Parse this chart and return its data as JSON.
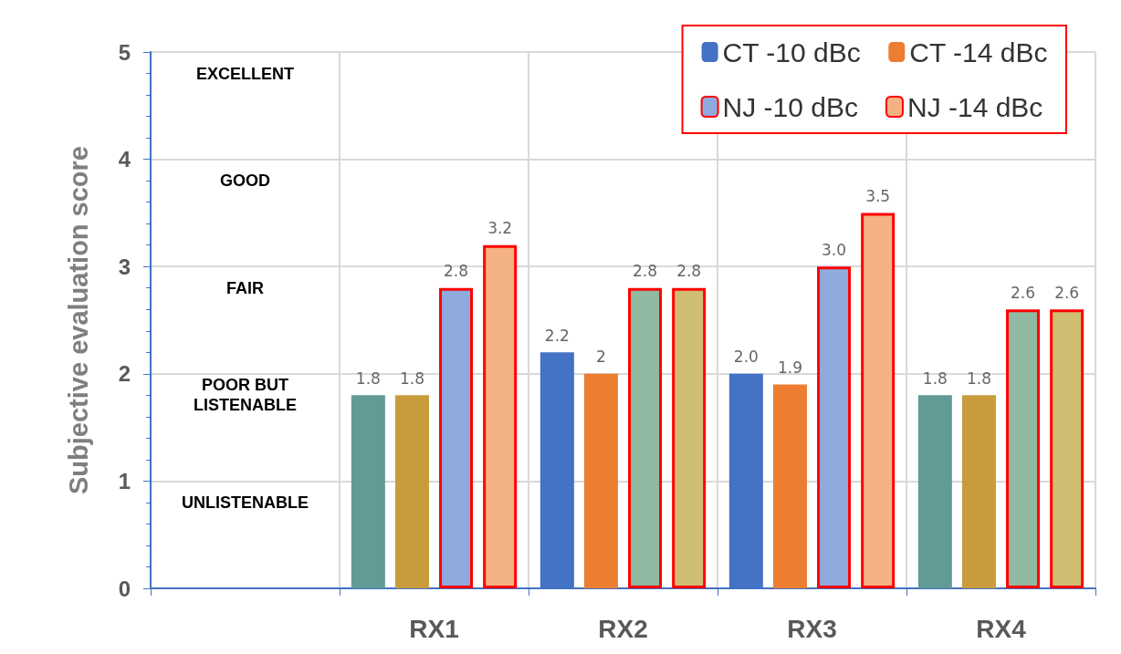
{
  "chart_data": {
    "type": "bar",
    "ylabel": "Subjective evaluation score",
    "categories": [
      null,
      "RX1",
      "RX2",
      "RX3",
      "RX4"
    ],
    "series": [
      {
        "name": "CT -10 dBc",
        "color": "#4472c4",
        "colors": [
          "#4472c4",
          "#629a96",
          "#4472c4",
          "#4472c4",
          "#629a96"
        ],
        "values": [
          null,
          1.8,
          2.2,
          2.0,
          1.8
        ],
        "value_labels": [
          null,
          "1.8",
          "2.2",
          "2.0",
          "1.8"
        ]
      },
      {
        "name": "CT -14 dBc",
        "color": "#ed7d31",
        "colors": [
          "#ed7d31",
          "#c89b3c",
          "#ed7d31",
          "#ed7d31",
          "#c89b3c"
        ],
        "values": [
          null,
          1.8,
          2,
          1.9,
          1.8
        ],
        "value_labels": [
          null,
          "1.8",
          "2",
          "1.9",
          "1.8"
        ]
      },
      {
        "name": "NJ -10 dBc",
        "color": "#8faadc",
        "colors": [
          "#8faadc",
          "#8faadc",
          "#8fb9a0",
          "#8faadc",
          "#8fb9a0"
        ],
        "values": [
          null,
          2.8,
          2.8,
          3.0,
          2.6
        ],
        "value_labels": [
          null,
          "2.8",
          "2.8",
          "3.0",
          "2.6"
        ]
      },
      {
        "name": "NJ -14 dBc",
        "color": "#f4b183",
        "colors": [
          "#f4b183",
          "#f4b183",
          "#cfbd72",
          "#f4b183",
          "#cfbd72"
        ],
        "values": [
          null,
          3.2,
          2.8,
          3.5,
          2.6
        ],
        "value_labels": [
          null,
          "3.2",
          "2.8",
          "3.5",
          "2.6"
        ]
      }
    ],
    "ylim": [
      0,
      5
    ],
    "yticks": [
      0,
      1,
      2,
      3,
      4,
      5
    ],
    "grid": true,
    "legend": "top right",
    "annotations": [
      "EXCELLENT",
      "GOOD",
      "FAIR",
      "POOR BUT\nLISTENABLE",
      "UNLISTENABLE"
    ]
  }
}
